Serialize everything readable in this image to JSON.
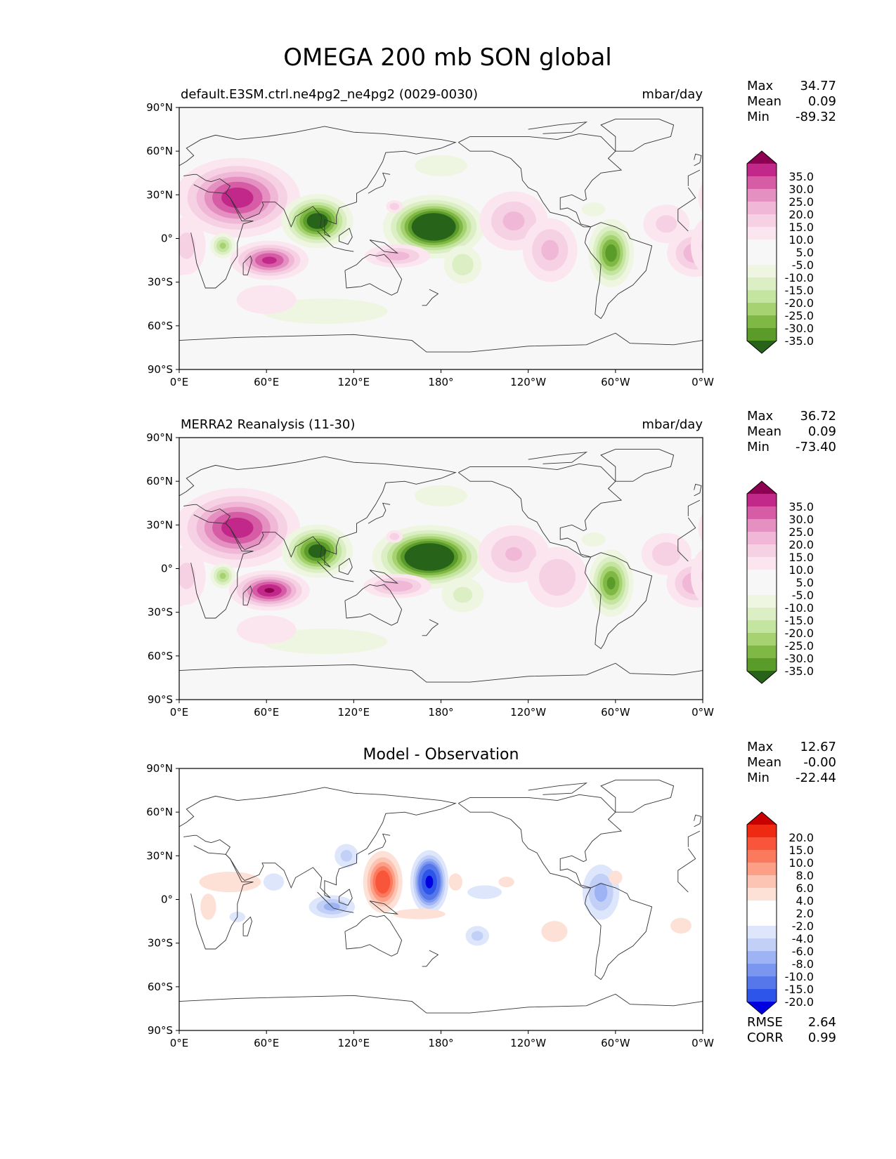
{
  "title": "OMEGA 200 mb SON global",
  "colors": {
    "seq_pos": [
      "#f7f7f7",
      "#fbe6ef",
      "#f6d1e4",
      "#f0b7d6",
      "#e490c0",
      "#d55ca5",
      "#c2288a",
      "#8e0152"
    ],
    "seq_neg": [
      "#f7f7f7",
      "#eef6e2",
      "#dcefc4",
      "#c4e59f",
      "#a6d272",
      "#7fb844",
      "#5a9b2a",
      "#276419"
    ],
    "diff_pos": [
      "#ffffff",
      "#fde0d6",
      "#fcc4b2",
      "#fc9f86",
      "#fb7a5d",
      "#f8553a",
      "#ef2a12",
      "#c80000"
    ],
    "diff_neg": [
      "#ffffff",
      "#dde6fb",
      "#c2d0f8",
      "#9db3f3",
      "#7a96ee",
      "#5577ea",
      "#2d55ea",
      "#0000e0"
    ],
    "coast": "#333333"
  },
  "lat_ticks": [
    "90°N",
    "60°N",
    "30°N",
    "0°",
    "30°S",
    "60°S",
    "90°S"
  ],
  "lon_ticks": [
    "0°E",
    "60°E",
    "120°E",
    "180°",
    "120°W",
    "60°W",
    "0°W"
  ],
  "chart_data": [
    {
      "type": "heatmap",
      "id": "model",
      "left_title": "default.E3SM.ctrl.ne4pg2_ne4pg2 (0029-0030)",
      "center_title": "",
      "right_title": "mbar/day",
      "stats": [
        {
          "label": "Max",
          "value": "34.77"
        },
        {
          "label": "Mean",
          "value": "0.09"
        },
        {
          "label": "Min",
          "value": "-89.32"
        }
      ],
      "colorbar_ticks": [
        "35.0",
        "30.0",
        "25.0",
        "20.0",
        "15.0",
        "10.0",
        "5.0",
        "-5.0",
        "-10.0",
        "-15.0",
        "-20.0",
        "-25.0",
        "-30.0",
        "-35.0"
      ],
      "palette": "seq",
      "levels_abs": [
        5,
        10,
        15,
        20,
        25,
        30,
        35
      ],
      "blobs": [
        {
          "lon": 40,
          "lat": 28,
          "slon": 22,
          "slat": 14,
          "amp": 34
        },
        {
          "lon": 62,
          "lat": -15,
          "slon": 14,
          "slat": 7,
          "amp": 32
        },
        {
          "lon": 30,
          "lat": -5,
          "slon": 5,
          "slat": 5,
          "amp": -22
        },
        {
          "lon": 95,
          "lat": 12,
          "slon": 12,
          "slat": 9,
          "amp": -42
        },
        {
          "lon": 175,
          "lat": 8,
          "slon": 16,
          "slat": 10,
          "amp": -55
        },
        {
          "lon": 148,
          "lat": 22,
          "slon": 4,
          "slat": 3,
          "amp": 14
        },
        {
          "lon": 150,
          "lat": -12,
          "slon": 14,
          "slat": 5,
          "amp": 18
        },
        {
          "lon": 195,
          "lat": -18,
          "slon": 9,
          "slat": 9,
          "amp": -14
        },
        {
          "lon": 230,
          "lat": 12,
          "slon": 15,
          "slat": 13,
          "amp": 17
        },
        {
          "lon": 255,
          "lat": -8,
          "slon": 12,
          "slat": 14,
          "amp": 17
        },
        {
          "lon": 297,
          "lat": -10,
          "slon": 8,
          "slat": 12,
          "amp": -34
        },
        {
          "lon": 285,
          "lat": 20,
          "slon": 7,
          "slat": 4,
          "amp": -10
        },
        {
          "lon": 335,
          "lat": 10,
          "slon": 12,
          "slat": 10,
          "amp": 12
        },
        {
          "lon": 355,
          "lat": -10,
          "slon": 12,
          "slat": 10,
          "amp": 19
        },
        {
          "lon": 5,
          "lat": -5,
          "slon": 10,
          "slat": 15,
          "amp": 12
        },
        {
          "lon": 100,
          "lat": -50,
          "slon": 40,
          "slat": 8,
          "amp": -9
        },
        {
          "lon": 60,
          "lat": -42,
          "slon": 25,
          "slat": 12,
          "amp": 7
        },
        {
          "lon": 180,
          "lat": 50,
          "slon": 30,
          "slat": 12,
          "amp": -6
        }
      ]
    },
    {
      "type": "heatmap",
      "id": "obs",
      "left_title": "MERRA2 Reanalysis (11-30)",
      "center_title": "",
      "right_title": "mbar/day",
      "stats": [
        {
          "label": "Max",
          "value": "36.72"
        },
        {
          "label": "Mean",
          "value": "0.09"
        },
        {
          "label": "Min",
          "value": "-73.40"
        }
      ],
      "colorbar_ticks": [
        "35.0",
        "30.0",
        "25.0",
        "20.0",
        "15.0",
        "10.0",
        "5.0",
        "-5.0",
        "-10.0",
        "-15.0",
        "-20.0",
        "-25.0",
        "-30.0",
        "-35.0"
      ],
      "palette": "seq",
      "levels_abs": [
        5,
        10,
        15,
        20,
        25,
        30,
        35
      ],
      "blobs": [
        {
          "lon": 40,
          "lat": 28,
          "slon": 22,
          "slat": 14,
          "amp": 34
        },
        {
          "lon": 62,
          "lat": -15,
          "slon": 14,
          "slat": 7,
          "amp": 36
        },
        {
          "lon": 30,
          "lat": -5,
          "slon": 5,
          "slat": 5,
          "amp": -22
        },
        {
          "lon": 95,
          "lat": 12,
          "slon": 12,
          "slat": 9,
          "amp": -40
        },
        {
          "lon": 172,
          "lat": 8,
          "slon": 18,
          "slat": 10,
          "amp": -55
        },
        {
          "lon": 148,
          "lat": 22,
          "slon": 4,
          "slat": 3,
          "amp": 14
        },
        {
          "lon": 150,
          "lat": -12,
          "slon": 14,
          "slat": 5,
          "amp": 20
        },
        {
          "lon": 195,
          "lat": -18,
          "slon": 11,
          "slat": 9,
          "amp": -12
        },
        {
          "lon": 230,
          "lat": 10,
          "slon": 16,
          "slat": 13,
          "amp": 16
        },
        {
          "lon": 260,
          "lat": -6,
          "slon": 14,
          "slat": 14,
          "amp": 15
        },
        {
          "lon": 297,
          "lat": -10,
          "slon": 8,
          "slat": 12,
          "amp": -32
        },
        {
          "lon": 285,
          "lat": 20,
          "slon": 7,
          "slat": 4,
          "amp": -10
        },
        {
          "lon": 335,
          "lat": 10,
          "slon": 12,
          "slat": 10,
          "amp": 14
        },
        {
          "lon": 355,
          "lat": -10,
          "slon": 12,
          "slat": 10,
          "amp": 20
        },
        {
          "lon": 5,
          "lat": -5,
          "slon": 10,
          "slat": 15,
          "amp": 12
        },
        {
          "lon": 100,
          "lat": -50,
          "slon": 40,
          "slat": 8,
          "amp": -9
        },
        {
          "lon": 60,
          "lat": -42,
          "slon": 25,
          "slat": 12,
          "amp": 7
        },
        {
          "lon": 180,
          "lat": 50,
          "slon": 30,
          "slat": 12,
          "amp": -6
        }
      ]
    },
    {
      "type": "heatmap",
      "id": "diff",
      "left_title": "",
      "center_title": "Model - Observation",
      "right_title": "",
      "stats": [
        {
          "label": "Max",
          "value": "12.67"
        },
        {
          "label": "Mean",
          "value": "-0.00"
        },
        {
          "label": "Min",
          "value": "-22.44"
        }
      ],
      "extra_stats": [
        {
          "label": "RMSE",
          "value": "2.64"
        },
        {
          "label": "CORR",
          "value": "0.99"
        }
      ],
      "colorbar_ticks": [
        "20.0",
        "15.0",
        "10.0",
        "8.0",
        "6.0",
        "4.0",
        "2.0",
        "-2.0",
        "-4.0",
        "-6.0",
        "-8.0",
        "-10.0",
        "-15.0",
        "-20.0"
      ],
      "palette": "diff",
      "levels_abs": [
        2,
        4,
        6,
        8,
        10,
        15,
        20
      ],
      "blobs": [
        {
          "lon": 140,
          "lat": 12,
          "slon": 7,
          "slat": 11,
          "amp": 13
        },
        {
          "lon": 172,
          "lat": 12,
          "slon": 6,
          "slat": 10,
          "amp": -22
        },
        {
          "lon": 105,
          "lat": -5,
          "slon": 10,
          "slat": 5,
          "amp": -7
        },
        {
          "lon": 115,
          "lat": 30,
          "slon": 6,
          "slat": 6,
          "amp": -5
        },
        {
          "lon": 35,
          "lat": 12,
          "slon": 18,
          "slat": 6,
          "amp": 4
        },
        {
          "lon": 65,
          "lat": 12,
          "slon": 6,
          "slat": 5,
          "amp": -4
        },
        {
          "lon": 190,
          "lat": 12,
          "slon": 4,
          "slat": 5,
          "amp": 4
        },
        {
          "lon": 210,
          "lat": 5,
          "slon": 10,
          "slat": 4,
          "amp": -4
        },
        {
          "lon": 205,
          "lat": -25,
          "slon": 6,
          "slat": 5,
          "amp": -5
        },
        {
          "lon": 258,
          "lat": -22,
          "slon": 10,
          "slat": 8,
          "amp": 3
        },
        {
          "lon": 290,
          "lat": 5,
          "slon": 8,
          "slat": 12,
          "amp": -7
        },
        {
          "lon": 300,
          "lat": 15,
          "slon": 4,
          "slat": 4,
          "amp": 4
        },
        {
          "lon": 345,
          "lat": -18,
          "slon": 8,
          "slat": 6,
          "amp": 3
        },
        {
          "lon": 20,
          "lat": -5,
          "slon": 6,
          "slat": 10,
          "amp": 3
        },
        {
          "lon": 40,
          "lat": -12,
          "slon": 6,
          "slat": 4,
          "amp": -3
        },
        {
          "lon": 165,
          "lat": -10,
          "slon": 20,
          "slat": 4,
          "amp": 3
        },
        {
          "lon": 225,
          "lat": 12,
          "slon": 6,
          "slat": 4,
          "amp": 3
        }
      ]
    }
  ]
}
